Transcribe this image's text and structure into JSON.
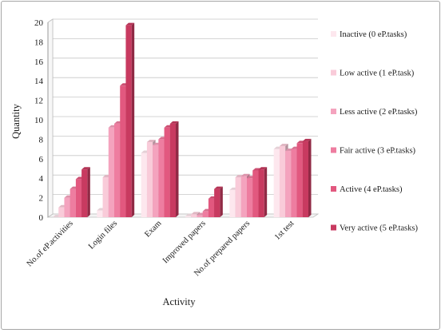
{
  "chart_data": {
    "type": "bar",
    "style": "3d-clustered-column",
    "xlabel": "Activity",
    "ylabel": "Quantity",
    "ylim": [
      0,
      20
    ],
    "yticks": [
      0,
      2,
      4,
      6,
      8,
      10,
      12,
      14,
      16,
      18,
      20
    ],
    "grid": true,
    "legend_position": "right",
    "categories": [
      "No.of eP.activities",
      "Login files",
      "Exam",
      "Improved papers",
      "No.of prepared papers",
      "1st test"
    ],
    "series": [
      {
        "name": "Inactive (0 eP.tasks)",
        "color": "#fde7ee",
        "values": [
          0,
          0.7,
          6.6,
          0.1,
          2.8,
          7.0
        ]
      },
      {
        "name": "Low active (1 eP.task)",
        "color": "#f9cbd9",
        "values": [
          1.0,
          4.1,
          7.7,
          0.3,
          4.1,
          7.3
        ]
      },
      {
        "name": "Less active (2 eP.tasks)",
        "color": "#f4a3be",
        "values": [
          2.0,
          9.2,
          7.4,
          0.2,
          4.2,
          6.8
        ]
      },
      {
        "name": "Fair active (3 eP.tasks)",
        "color": "#ee7da0",
        "values": [
          2.9,
          9.6,
          8.0,
          0.6,
          4.0,
          7.0
        ]
      },
      {
        "name": "Active (4 eP.tasks)",
        "color": "#e2587f",
        "values": [
          3.9,
          13.5,
          9.2,
          1.9,
          4.8,
          7.6
        ]
      },
      {
        "name": "Very active (5 eP.tasks)",
        "color": "#c83a60",
        "values": [
          4.9,
          19.7,
          9.6,
          2.9,
          4.9,
          7.8
        ]
      }
    ]
  }
}
